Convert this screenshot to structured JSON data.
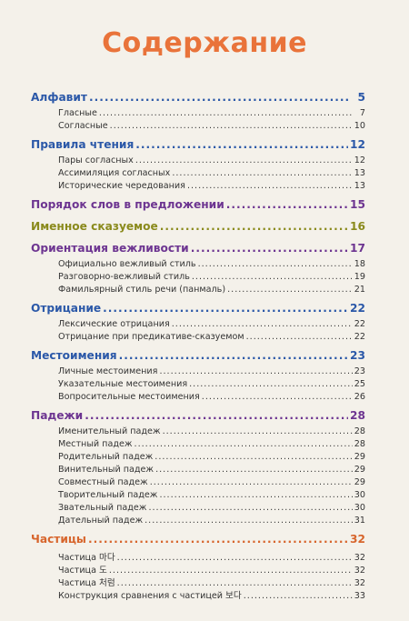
{
  "title": "Содержание",
  "sections": [
    {
      "label": "Алфавит",
      "page": "5",
      "color": "#2b58a8",
      "items": [
        {
          "label": "Гласные",
          "page": "7"
        },
        {
          "label": "Согласные",
          "page": "10"
        }
      ]
    },
    {
      "label": "Правила чтения",
      "page": "12",
      "color": "#2b58a8",
      "items": [
        {
          "label": "Пары согласных",
          "page": "12"
        },
        {
          "label": "Ассимиляция согласных",
          "page": "13"
        },
        {
          "label": "Исторические чередования",
          "page": "13"
        }
      ]
    },
    {
      "label": "Порядок слов в предложении",
      "page": "15",
      "color": "#6d3591",
      "items": []
    },
    {
      "label": "Именное сказуемое",
      "page": "16",
      "color": "#8a8a1c",
      "items": []
    },
    {
      "label": "Ориентация вежливости",
      "page": "17",
      "color": "#6d3591",
      "items": [
        {
          "label": "Официально вежливый стиль",
          "page": "18"
        },
        {
          "label": "Разговорно-вежливый стиль",
          "page": "19"
        },
        {
          "label": "Фамильярный стиль речи (панмаль)",
          "page": "21"
        }
      ]
    },
    {
      "label": "Отрицание",
      "page": "22",
      "color": "#2b58a8",
      "items": [
        {
          "label": "Лексические отрицания",
          "page": "22"
        },
        {
          "label": "Отрицание при предикативе-сказуемом",
          "page": "22"
        }
      ]
    },
    {
      "label": "Местоимения",
      "page": "23",
      "color": "#2b58a8",
      "items": [
        {
          "label": "Личные местоимения",
          "page": "23"
        },
        {
          "label": "Указательные местоимения",
          "page": "25"
        },
        {
          "label": "Вопросительные местоимения",
          "page": "26"
        }
      ]
    },
    {
      "label": "Падежи",
      "page": "28",
      "color": "#6d3591",
      "items": [
        {
          "label": "Именительный падеж",
          "page": "28"
        },
        {
          "label": "Местный падеж",
          "page": "28"
        },
        {
          "label": "Родительный падеж",
          "page": "29"
        },
        {
          "label": "Винительный падеж",
          "page": "29"
        },
        {
          "label": "Совместный падеж",
          "page": "29"
        },
        {
          "label": "Творительный падеж",
          "page": "30"
        },
        {
          "label": "Звательный падеж",
          "page": "30"
        },
        {
          "label": "Дательный падеж",
          "page": "31"
        }
      ]
    },
    {
      "label": "Частицы",
      "page": "32",
      "color": "#d7652c",
      "items": [
        {
          "label": "Частица 마다",
          "page": "32"
        },
        {
          "label": "Частица 도",
          "page": "32"
        },
        {
          "label": "Частица 처럼",
          "page": "32"
        },
        {
          "label": "Конструкция сравнения с частицей 보다",
          "page": "33"
        }
      ]
    }
  ]
}
